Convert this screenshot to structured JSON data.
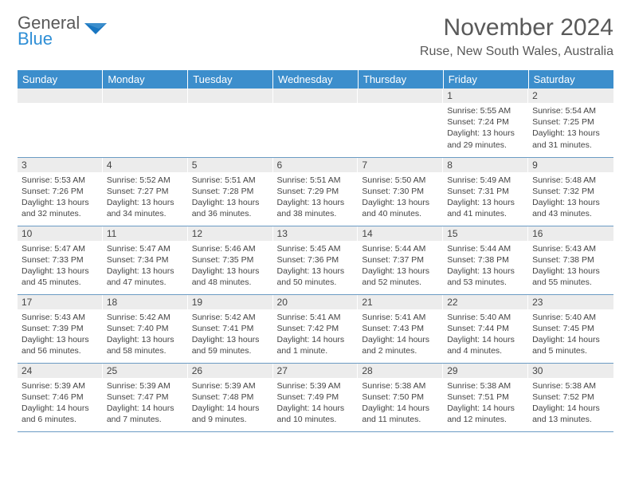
{
  "logo": {
    "text1": "General",
    "text2": "Blue",
    "color_gray": "#595959",
    "color_blue": "#2f8fd6"
  },
  "title": "November 2024",
  "location": "Ruse, New South Wales, Australia",
  "weekdays": [
    "Sunday",
    "Monday",
    "Tuesday",
    "Wednesday",
    "Thursday",
    "Friday",
    "Saturday"
  ],
  "header_bg": "#3c8ecc",
  "header_fg": "#ffffff",
  "daynum_bg": "#ececec",
  "cell_border": "#6b9bc4",
  "weeks": [
    [
      {
        "n": "",
        "sr": "",
        "ss": "",
        "dl": ""
      },
      {
        "n": "",
        "sr": "",
        "ss": "",
        "dl": ""
      },
      {
        "n": "",
        "sr": "",
        "ss": "",
        "dl": ""
      },
      {
        "n": "",
        "sr": "",
        "ss": "",
        "dl": ""
      },
      {
        "n": "",
        "sr": "",
        "ss": "",
        "dl": ""
      },
      {
        "n": "1",
        "sr": "Sunrise: 5:55 AM",
        "ss": "Sunset: 7:24 PM",
        "dl": "Daylight: 13 hours and 29 minutes."
      },
      {
        "n": "2",
        "sr": "Sunrise: 5:54 AM",
        "ss": "Sunset: 7:25 PM",
        "dl": "Daylight: 13 hours and 31 minutes."
      }
    ],
    [
      {
        "n": "3",
        "sr": "Sunrise: 5:53 AM",
        "ss": "Sunset: 7:26 PM",
        "dl": "Daylight: 13 hours and 32 minutes."
      },
      {
        "n": "4",
        "sr": "Sunrise: 5:52 AM",
        "ss": "Sunset: 7:27 PM",
        "dl": "Daylight: 13 hours and 34 minutes."
      },
      {
        "n": "5",
        "sr": "Sunrise: 5:51 AM",
        "ss": "Sunset: 7:28 PM",
        "dl": "Daylight: 13 hours and 36 minutes."
      },
      {
        "n": "6",
        "sr": "Sunrise: 5:51 AM",
        "ss": "Sunset: 7:29 PM",
        "dl": "Daylight: 13 hours and 38 minutes."
      },
      {
        "n": "7",
        "sr": "Sunrise: 5:50 AM",
        "ss": "Sunset: 7:30 PM",
        "dl": "Daylight: 13 hours and 40 minutes."
      },
      {
        "n": "8",
        "sr": "Sunrise: 5:49 AM",
        "ss": "Sunset: 7:31 PM",
        "dl": "Daylight: 13 hours and 41 minutes."
      },
      {
        "n": "9",
        "sr": "Sunrise: 5:48 AM",
        "ss": "Sunset: 7:32 PM",
        "dl": "Daylight: 13 hours and 43 minutes."
      }
    ],
    [
      {
        "n": "10",
        "sr": "Sunrise: 5:47 AM",
        "ss": "Sunset: 7:33 PM",
        "dl": "Daylight: 13 hours and 45 minutes."
      },
      {
        "n": "11",
        "sr": "Sunrise: 5:47 AM",
        "ss": "Sunset: 7:34 PM",
        "dl": "Daylight: 13 hours and 47 minutes."
      },
      {
        "n": "12",
        "sr": "Sunrise: 5:46 AM",
        "ss": "Sunset: 7:35 PM",
        "dl": "Daylight: 13 hours and 48 minutes."
      },
      {
        "n": "13",
        "sr": "Sunrise: 5:45 AM",
        "ss": "Sunset: 7:36 PM",
        "dl": "Daylight: 13 hours and 50 minutes."
      },
      {
        "n": "14",
        "sr": "Sunrise: 5:44 AM",
        "ss": "Sunset: 7:37 PM",
        "dl": "Daylight: 13 hours and 52 minutes."
      },
      {
        "n": "15",
        "sr": "Sunrise: 5:44 AM",
        "ss": "Sunset: 7:38 PM",
        "dl": "Daylight: 13 hours and 53 minutes."
      },
      {
        "n": "16",
        "sr": "Sunrise: 5:43 AM",
        "ss": "Sunset: 7:38 PM",
        "dl": "Daylight: 13 hours and 55 minutes."
      }
    ],
    [
      {
        "n": "17",
        "sr": "Sunrise: 5:43 AM",
        "ss": "Sunset: 7:39 PM",
        "dl": "Daylight: 13 hours and 56 minutes."
      },
      {
        "n": "18",
        "sr": "Sunrise: 5:42 AM",
        "ss": "Sunset: 7:40 PM",
        "dl": "Daylight: 13 hours and 58 minutes."
      },
      {
        "n": "19",
        "sr": "Sunrise: 5:42 AM",
        "ss": "Sunset: 7:41 PM",
        "dl": "Daylight: 13 hours and 59 minutes."
      },
      {
        "n": "20",
        "sr": "Sunrise: 5:41 AM",
        "ss": "Sunset: 7:42 PM",
        "dl": "Daylight: 14 hours and 1 minute."
      },
      {
        "n": "21",
        "sr": "Sunrise: 5:41 AM",
        "ss": "Sunset: 7:43 PM",
        "dl": "Daylight: 14 hours and 2 minutes."
      },
      {
        "n": "22",
        "sr": "Sunrise: 5:40 AM",
        "ss": "Sunset: 7:44 PM",
        "dl": "Daylight: 14 hours and 4 minutes."
      },
      {
        "n": "23",
        "sr": "Sunrise: 5:40 AM",
        "ss": "Sunset: 7:45 PM",
        "dl": "Daylight: 14 hours and 5 minutes."
      }
    ],
    [
      {
        "n": "24",
        "sr": "Sunrise: 5:39 AM",
        "ss": "Sunset: 7:46 PM",
        "dl": "Daylight: 14 hours and 6 minutes."
      },
      {
        "n": "25",
        "sr": "Sunrise: 5:39 AM",
        "ss": "Sunset: 7:47 PM",
        "dl": "Daylight: 14 hours and 7 minutes."
      },
      {
        "n": "26",
        "sr": "Sunrise: 5:39 AM",
        "ss": "Sunset: 7:48 PM",
        "dl": "Daylight: 14 hours and 9 minutes."
      },
      {
        "n": "27",
        "sr": "Sunrise: 5:39 AM",
        "ss": "Sunset: 7:49 PM",
        "dl": "Daylight: 14 hours and 10 minutes."
      },
      {
        "n": "28",
        "sr": "Sunrise: 5:38 AM",
        "ss": "Sunset: 7:50 PM",
        "dl": "Daylight: 14 hours and 11 minutes."
      },
      {
        "n": "29",
        "sr": "Sunrise: 5:38 AM",
        "ss": "Sunset: 7:51 PM",
        "dl": "Daylight: 14 hours and 12 minutes."
      },
      {
        "n": "30",
        "sr": "Sunrise: 5:38 AM",
        "ss": "Sunset: 7:52 PM",
        "dl": "Daylight: 14 hours and 13 minutes."
      }
    ]
  ]
}
